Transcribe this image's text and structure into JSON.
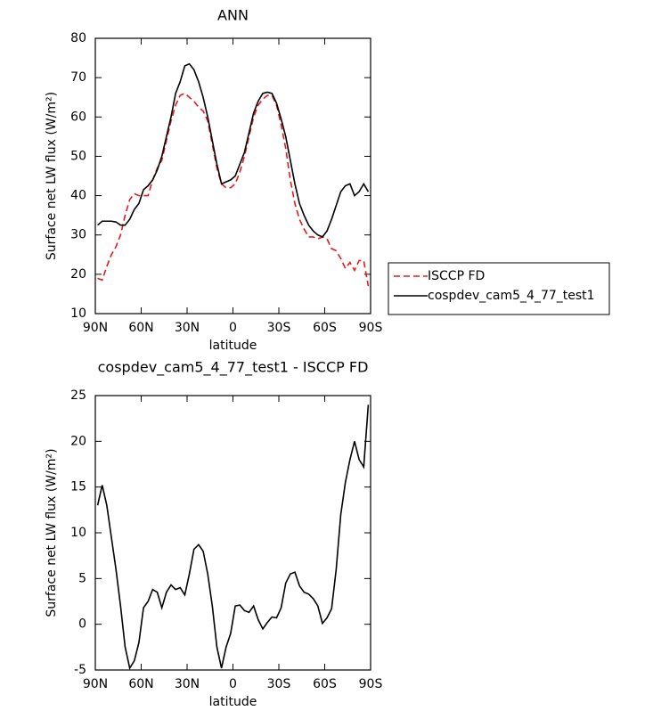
{
  "chart_data": [
    {
      "type": "line",
      "title": "ANN",
      "x_label": "latitude",
      "y_label": "Surface net LW flux (W/m²)",
      "x": [
        88.5,
        85.5,
        82.5,
        79.5,
        76.5,
        73.5,
        70.5,
        67.5,
        64.5,
        61.5,
        58.5,
        55.5,
        52.5,
        49.5,
        46.5,
        43.5,
        40.5,
        37.5,
        34.5,
        31.5,
        28.5,
        25.5,
        22.5,
        19.5,
        16.5,
        13.5,
        10.5,
        7.5,
        4.5,
        1.5,
        -1.5,
        -4.5,
        -7.5,
        -10.5,
        -13.5,
        -16.5,
        -19.5,
        -22.5,
        -25.5,
        -28.5,
        -31.5,
        -34.5,
        -37.5,
        -40.5,
        -43.5,
        -46.5,
        -49.5,
        -52.5,
        -55.5,
        -58.5,
        -61.5,
        -64.5,
        -67.5,
        -70.5,
        -73.5,
        -76.5,
        -79.5,
        -82.5,
        -85.5,
        -88.5
      ],
      "series": [
        {
          "name": "ISCCP FD",
          "color": "#e8191c",
          "style": "dashed",
          "values": [
            19,
            18.5,
            22,
            25,
            27,
            30,
            35,
            39,
            40.5,
            40,
            40,
            40,
            44,
            47,
            49,
            54,
            59,
            63,
            65.5,
            66,
            65,
            64,
            62.5,
            61.5,
            59,
            53,
            47,
            43,
            42,
            42,
            43,
            46,
            50,
            55,
            60,
            63,
            64.5,
            65.5,
            65.5,
            63,
            58,
            52,
            44,
            38,
            34,
            31.5,
            29.5,
            29.5,
            29,
            29.5,
            29,
            26.5,
            26,
            24,
            21.5,
            23,
            21,
            23.5,
            23.5,
            17
          ]
        },
        {
          "name": "cospdev_cam5_4_77_test1",
          "color": "#000000",
          "style": "solid",
          "values": [
            32.5,
            33.5,
            33.5,
            33.5,
            33.3,
            32.5,
            32.5,
            34,
            36.5,
            38,
            41.5,
            42.5,
            44,
            46.5,
            50,
            55,
            60,
            66,
            69,
            73,
            73.5,
            72,
            69,
            65,
            60,
            54,
            48,
            43,
            43.5,
            44,
            45,
            48,
            51,
            56,
            61,
            64,
            66,
            66.3,
            66,
            63.5,
            59.5,
            55,
            49,
            43,
            38,
            35,
            32.5,
            31,
            30,
            29.5,
            31,
            34,
            37.5,
            41,
            42.5,
            43,
            40,
            41,
            43,
            41
          ]
        }
      ],
      "xlim": [
        90,
        -90
      ],
      "xticks": [
        {
          "value": 90,
          "label": "90N"
        },
        {
          "value": 60,
          "label": "60N"
        },
        {
          "value": 30,
          "label": "30N"
        },
        0,
        {
          "value": -30,
          "label": "30S"
        },
        {
          "value": -60,
          "label": "60S"
        },
        {
          "value": -90,
          "label": "90S"
        }
      ],
      "ylim": [
        10,
        80
      ],
      "yticks": [
        10,
        20,
        30,
        40,
        50,
        60,
        70,
        80
      ],
      "legend": "right"
    },
    {
      "type": "line",
      "title": "cospdev_cam5_4_77_test1 - ISCCP FD",
      "x_label": "latitude",
      "y_label": "Surface net LW flux (W/m²)",
      "x": [
        88.5,
        85.5,
        82.5,
        79.5,
        76.5,
        73.5,
        70.5,
        67.5,
        64.5,
        61.5,
        58.5,
        55.5,
        52.5,
        49.5,
        46.5,
        43.5,
        40.5,
        37.5,
        34.5,
        31.5,
        28.5,
        25.5,
        22.5,
        19.5,
        16.5,
        13.5,
        10.5,
        7.5,
        4.5,
        1.5,
        -1.5,
        -4.5,
        -7.5,
        -10.5,
        -13.5,
        -16.5,
        -19.5,
        -22.5,
        -25.5,
        -28.5,
        -31.5,
        -34.5,
        -37.5,
        -40.5,
        -43.5,
        -46.5,
        -49.5,
        -52.5,
        -55.5,
        -58.5,
        -61.5,
        -64.5,
        -67.5,
        -70.5,
        -73.5,
        -76.5,
        -79.5,
        -82.5,
        -85.5,
        -88.5
      ],
      "values": [
        13,
        15.2,
        13,
        9.5,
        6,
        2,
        -2.5,
        -4.8,
        -4,
        -2,
        1.8,
        2.5,
        3.8,
        3.5,
        1.8,
        3.5,
        4.3,
        3.8,
        4,
        3.2,
        5.5,
        8.2,
        8.7,
        8,
        5.5,
        2,
        -2.5,
        -4.8,
        -2.5,
        -1,
        2,
        2.1,
        1.5,
        1.3,
        2,
        0.5,
        -0.5,
        0.2,
        0.8,
        0.7,
        1.8,
        4.5,
        5.5,
        5.7,
        4.2,
        3.5,
        3.3,
        2.8,
        2,
        0.1,
        0.7,
        1.7,
        6,
        12,
        15.5,
        18,
        20,
        18,
        17.2,
        24
      ],
      "color": "#000000",
      "style": "solid",
      "xlim": [
        90,
        -90
      ],
      "xticks": [
        {
          "value": 90,
          "label": "90N"
        },
        {
          "value": 60,
          "label": "60N"
        },
        {
          "value": 30,
          "label": "30N"
        },
        0,
        {
          "value": -30,
          "label": "30S"
        },
        {
          "value": -60,
          "label": "60S"
        },
        {
          "value": -90,
          "label": "90S"
        }
      ],
      "ylim": [
        -5,
        25
      ],
      "yticks": [
        -5,
        0,
        5,
        10,
        15,
        20,
        25
      ]
    }
  ]
}
